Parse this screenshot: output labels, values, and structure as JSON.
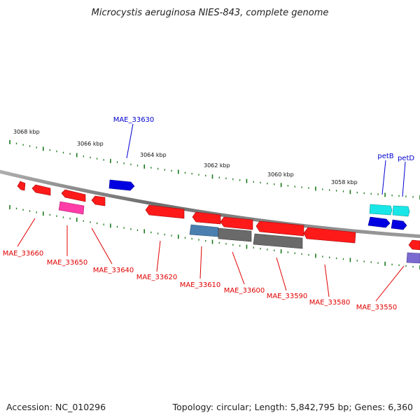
{
  "title": "Microcystis aeruginosa NIES-843, complete genome",
  "footer": {
    "accession": "Accession: NC_010296",
    "summary": "Topology: circular; Length: 5,842,795 bp; Genes: 6,360"
  },
  "colors": {
    "backbone": "#7f7f7f",
    "tick": "#1a7a1a",
    "gene_red": "#ff1a1a",
    "gene_blue": "#0000e0",
    "gene_cyan": "#19e6e6",
    "gene_magenta": "#ff3ca8",
    "gene_steel": "#4a7fb0",
    "gene_gray": "#6a6a6a",
    "gene_purple": "#7a6ad0",
    "label_red": "#e00000",
    "label_blue": "#0000d0"
  },
  "kbp_labels": [
    "3068 kbp",
    "3066 kbp",
    "3064 kbp",
    "3062 kbp",
    "3060 kbp",
    "3058 kbp"
  ],
  "gene_labels": {
    "MAE_33630": "MAE_33630",
    "petB": "petB",
    "petD": "petD",
    "MAE_33660": "MAE_33660",
    "MAE_33650": "MAE_33650",
    "MAE_33640": "MAE_33640",
    "MAE_33620": "MAE_33620",
    "MAE_33610": "MAE_33610",
    "MAE_33600": "MAE_33600",
    "MAE_33590": "MAE_33590",
    "MAE_33580": "MAE_33580",
    "MAE_33550": "MAE_33550"
  }
}
